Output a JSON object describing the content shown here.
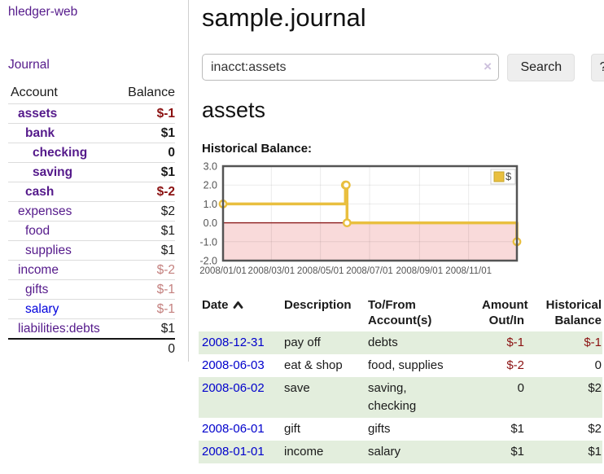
{
  "sidebar": {
    "brand": "hledger-web",
    "journal_label": "Journal",
    "accounts_table": {
      "headers": {
        "account": "Account",
        "balance": "Balance"
      },
      "rows": [
        {
          "name": "assets",
          "level": 1,
          "bold": true,
          "balance": "$-1",
          "balance_style": "neg-strong",
          "link_color": "purple"
        },
        {
          "name": "bank",
          "level": 2,
          "bold": true,
          "balance": "$1",
          "balance_style": "normal",
          "link_color": "purple"
        },
        {
          "name": "checking",
          "level": 3,
          "bold": true,
          "balance": "0",
          "balance_style": "normal",
          "link_color": "purple"
        },
        {
          "name": "saving",
          "level": 3,
          "bold": true,
          "balance": "$1",
          "balance_style": "normal",
          "link_color": "purple"
        },
        {
          "name": "cash",
          "level": 2,
          "bold": true,
          "balance": "$-2",
          "balance_style": "neg-strong",
          "link_color": "purple"
        },
        {
          "name": "expenses",
          "level": 1,
          "bold": false,
          "balance": "$2",
          "balance_style": "normal",
          "link_color": "purple"
        },
        {
          "name": "food",
          "level": 2,
          "bold": false,
          "balance": "$1",
          "balance_style": "normal",
          "link_color": "purple"
        },
        {
          "name": "supplies",
          "level": 2,
          "bold": false,
          "balance": "$1",
          "balance_style": "normal",
          "link_color": "purple"
        },
        {
          "name": "income",
          "level": 1,
          "bold": false,
          "balance": "$-2",
          "balance_style": "neg-soft",
          "link_color": "purple"
        },
        {
          "name": "gifts",
          "level": 2,
          "bold": false,
          "balance": "$-1",
          "balance_style": "neg-soft",
          "link_color": "purple"
        },
        {
          "name": "salary",
          "level": 2,
          "bold": false,
          "balance": "$-1",
          "balance_style": "neg-soft",
          "link_color": "blue"
        },
        {
          "name": "liabilities:debts",
          "level": 1,
          "bold": false,
          "balance": "$1",
          "balance_style": "normal",
          "link_color": "purple"
        }
      ],
      "total": "0"
    }
  },
  "header": {
    "title": "sample.journal"
  },
  "search": {
    "value": "inacct:assets",
    "clear_icon": "×",
    "button_label": "Search",
    "help_label": "?"
  },
  "account_page": {
    "heading": "assets",
    "chart_label": "Historical Balance:"
  },
  "chart_data": {
    "type": "line",
    "title": "Historical Balance",
    "series": [
      {
        "name": "$",
        "color": "#e9bf3f",
        "steps": true,
        "points": [
          [
            "2008-01-01",
            1
          ],
          [
            "2008-06-01",
            2
          ],
          [
            "2008-06-02",
            2
          ],
          [
            "2008-06-03",
            0
          ],
          [
            "2008-12-31",
            -1
          ]
        ]
      }
    ],
    "xlim": [
      "2008-01-01",
      "2008-12-31"
    ],
    "ylim": [
      -2,
      3
    ],
    "x_ticks": [
      "2008/01/01",
      "2008/03/01",
      "2008/05/01",
      "2008/07/01",
      "2008/09/01",
      "2008/11/01"
    ],
    "y_ticks": [
      3,
      2,
      1,
      0,
      -1,
      -2
    ],
    "legend": {
      "label": "$",
      "position": "top-right"
    },
    "grid": true,
    "negative_region_color": "#f9dada",
    "zero_line_color": "#8b1a1a",
    "axis_label_color": "#545454",
    "plot_border_color": "#545454"
  },
  "register_table": {
    "headers": {
      "date": "Date",
      "description": "Description",
      "tofrom_line1": "To/From",
      "tofrom_line2": "Account(s)",
      "amount_line1": "Amount",
      "amount_line2": "Out/In",
      "historical_line1": "Historical",
      "historical_line2": "Balance"
    },
    "rows": [
      {
        "date": "2008-12-31",
        "description": "pay off",
        "accounts": [
          "debts"
        ],
        "amount": "$-1",
        "amount_negative": true,
        "balance": "$-1",
        "balance_negative": true,
        "stripe": true
      },
      {
        "date": "2008-06-03",
        "description": "eat & shop",
        "accounts": [
          "food, supplies"
        ],
        "amount": "$-2",
        "amount_negative": true,
        "balance": "0",
        "balance_negative": false,
        "stripe": false
      },
      {
        "date": "2008-06-02",
        "description": "save",
        "accounts": [
          "saving,",
          "checking"
        ],
        "amount": "0",
        "amount_negative": false,
        "balance": "$2",
        "balance_negative": false,
        "stripe": true
      },
      {
        "date": "2008-06-01",
        "description": "gift",
        "accounts": [
          "gifts"
        ],
        "amount": "$1",
        "amount_negative": false,
        "balance": "$2",
        "balance_negative": false,
        "stripe": false
      },
      {
        "date": "2008-01-01",
        "description": "income",
        "accounts": [
          "salary"
        ],
        "amount": "$1",
        "amount_negative": false,
        "balance": "$1",
        "balance_negative": false,
        "stripe": true
      }
    ]
  },
  "colors": {
    "link_purple": "#551a8b",
    "link_blue": "#0000dd",
    "date_link_blue": "#0000cc",
    "negative_strong": "#8b1111",
    "negative_soft": "#c4807e",
    "row_stripe_green": "#e3eedd",
    "chart_line_gold": "#e9bf3f",
    "chart_negative_pink": "#f9dada",
    "chart_zero_red": "#8b1a1a"
  }
}
